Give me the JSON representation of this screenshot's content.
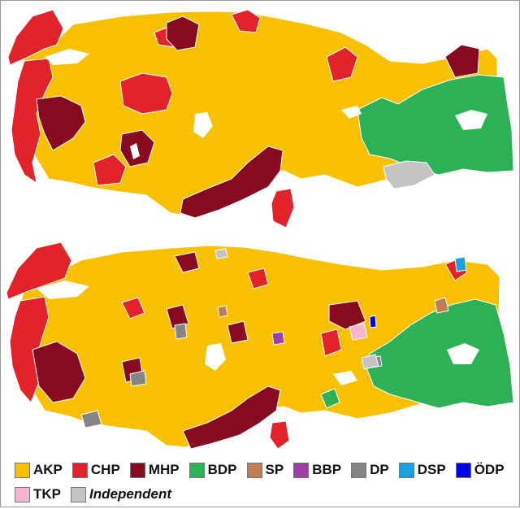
{
  "maps": [
    {
      "id": "top",
      "level": "provinces"
    },
    {
      "id": "bottom",
      "level": "districts"
    }
  ],
  "legend": [
    {
      "party": "AKP",
      "label": "AKP",
      "color": "#f9c000"
    },
    {
      "party": "CHP",
      "label": "CHP",
      "color": "#e3232b"
    },
    {
      "party": "MHP",
      "label": "MHP",
      "color": "#870a1e"
    },
    {
      "party": "BDP",
      "label": "BDP",
      "color": "#2db157"
    },
    {
      "party": "SP",
      "label": "SP",
      "color": "#c07c52"
    },
    {
      "party": "BBP",
      "label": "BBP",
      "color": "#9a40a6"
    },
    {
      "party": "DP",
      "label": "DP",
      "color": "#858585"
    },
    {
      "party": "DSP",
      "label": "DSP",
      "color": "#1ba0de"
    },
    {
      "party": "ODP",
      "label": "ÖDP",
      "color": "#0000e6"
    },
    {
      "party": "TKP",
      "label": "TKP",
      "color": "#f7b4d2"
    },
    {
      "party": "Independent",
      "label": "Independent",
      "color": "#c4c4c4",
      "italic": true
    }
  ],
  "lake_color": "#ffffff",
  "border_color": "#ffffff"
}
